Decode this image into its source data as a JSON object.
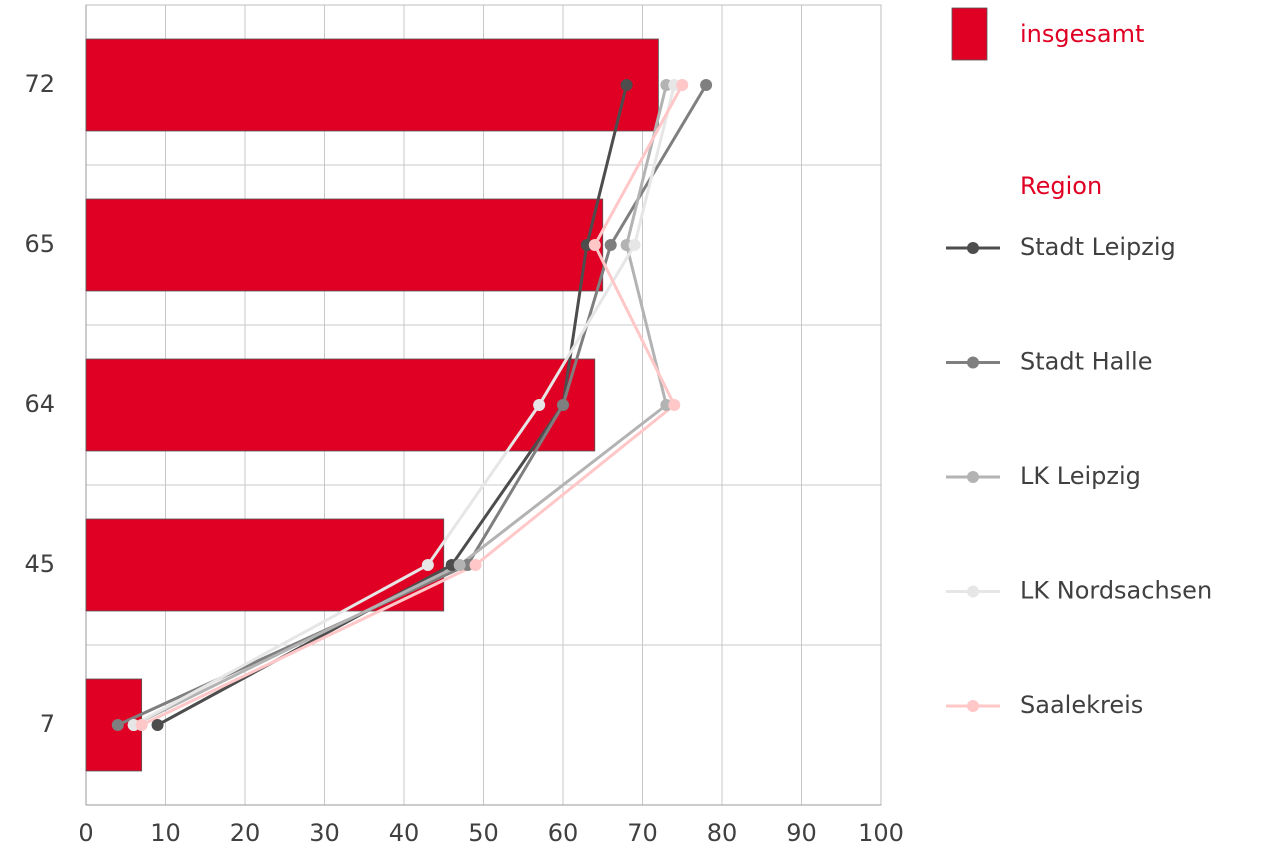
{
  "chart_data": {
    "type": "bar",
    "orientation": "horizontal",
    "bars": {
      "name": "insgesamt",
      "color": "#e00024",
      "values": [
        72,
        65,
        64,
        45,
        7
      ],
      "value_labels": [
        "72",
        "65",
        "64",
        "45",
        "7"
      ]
    },
    "legend_title": "Region",
    "series": [
      {
        "name": "Stadt Leipzig",
        "color": "#4d4d4d",
        "values": [
          68,
          63,
          60,
          46,
          9
        ]
      },
      {
        "name": "Stadt Halle",
        "color": "#7f7f7f",
        "values": [
          78,
          66,
          60,
          48,
          4
        ]
      },
      {
        "name": "LK Leipzig",
        "color": "#b3b3b3",
        "values": [
          73,
          68,
          73,
          47,
          6
        ]
      },
      {
        "name": "LK Nordsachsen",
        "color": "#e6e6e6",
        "values": [
          74,
          69,
          57,
          43,
          6
        ]
      },
      {
        "name": "Saalekreis",
        "color": "#ffc7c7",
        "values": [
          75,
          64,
          74,
          49,
          7
        ]
      }
    ],
    "xlim": [
      0,
      100
    ],
    "xticks": [
      0,
      10,
      20,
      30,
      40,
      50,
      60,
      70,
      80,
      90,
      100
    ],
    "grid": true,
    "legend": "right"
  }
}
